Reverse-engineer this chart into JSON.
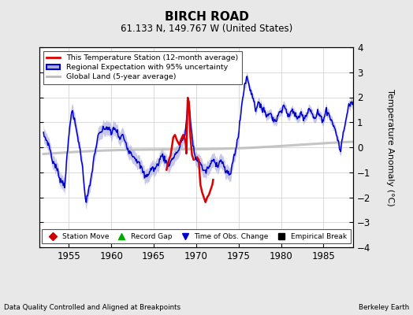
{
  "title": "BIRCH ROAD",
  "subtitle": "61.133 N, 149.767 W (United States)",
  "ylabel": "Temperature Anomaly (°C)",
  "xlabel_years": [
    1955,
    1960,
    1965,
    1970,
    1975,
    1980,
    1985
  ],
  "ylim": [
    -4,
    4
  ],
  "xlim": [
    1951.5,
    1988.5
  ],
  "background_color": "#e8e8e8",
  "plot_bg_color": "#ffffff",
  "footer_left": "Data Quality Controlled and Aligned at Breakpoints",
  "footer_right": "Berkeley Earth",
  "legend_line1": "This Temperature Station (12-month average)",
  "legend_line2": "Regional Expectation with 95% uncertainty",
  "legend_line3": "Global Land (5-year average)",
  "legend2_items": [
    "Station Move",
    "Record Gap",
    "Time of Obs. Change",
    "Empirical Break"
  ],
  "legend2_colors": [
    "#cc0000",
    "#00aa00",
    "#0000cc",
    "#000000"
  ],
  "legend2_markers": [
    "D",
    "^",
    "v",
    "s"
  ],
  "red_line_color": "#dd0000",
  "blue_line_color": "#0000cc",
  "blue_fill_color": "#aaaadd",
  "gray_line_color": "#bbbbbb",
  "grid_color": "#cccccc"
}
